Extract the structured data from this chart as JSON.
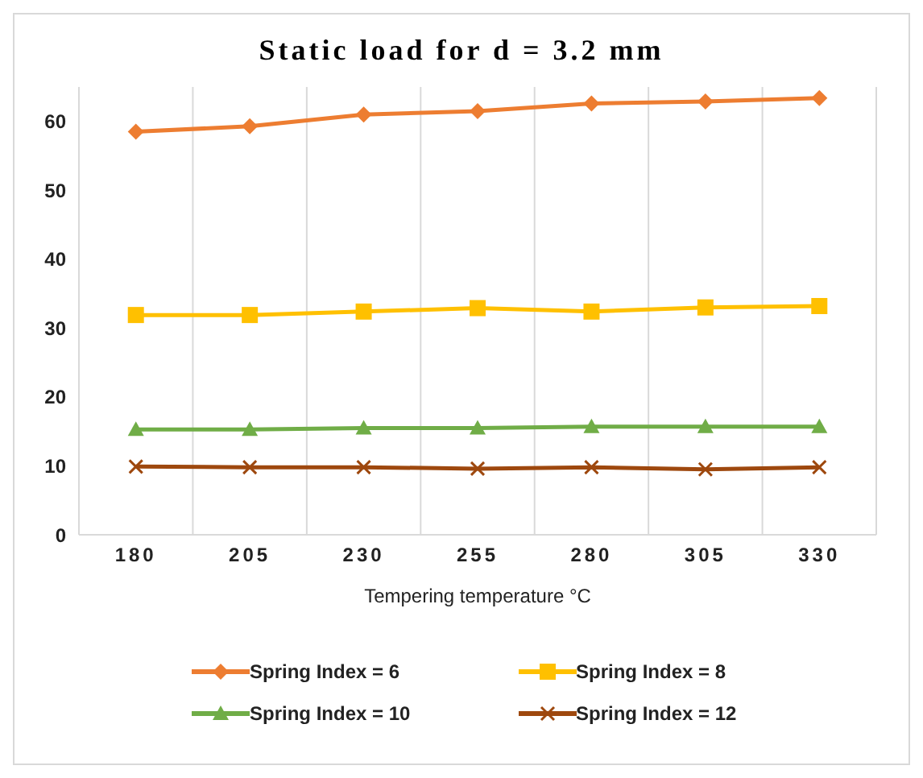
{
  "chart_data": {
    "type": "line",
    "title": "Static load for d = 3.2 mm",
    "xlabel": "Tempering temperature °C",
    "categories": [
      "180",
      "205",
      "230",
      "255",
      "280",
      "305",
      "330"
    ],
    "series": [
      {
        "name": "Spring Index = 6",
        "color": "#ed7d31",
        "marker": "diamond",
        "values": [
          58.5,
          59.3,
          61,
          61.5,
          62.6,
          62.9,
          63.4
        ]
      },
      {
        "name": "Spring Index = 8",
        "color": "#ffc000",
        "marker": "square",
        "values": [
          31.9,
          31.9,
          32.4,
          32.9,
          32.4,
          33.0,
          33.2
        ]
      },
      {
        "name": "Spring Index = 10",
        "color": "#70ad47",
        "marker": "triangle",
        "values": [
          15.3,
          15.3,
          15.5,
          15.5,
          15.7,
          15.7,
          15.7
        ]
      },
      {
        "name": "Spring Index = 12",
        "color": "#9e480e",
        "marker": "cross",
        "values": [
          9.9,
          9.8,
          9.8,
          9.6,
          9.8,
          9.5,
          9.8
        ]
      }
    ],
    "ylim": [
      0,
      65
    ],
    "yticks": [
      0,
      10,
      20,
      30,
      40,
      50,
      60
    ],
    "grid": "x",
    "legend": "bottom",
    "line_style": "solid"
  }
}
